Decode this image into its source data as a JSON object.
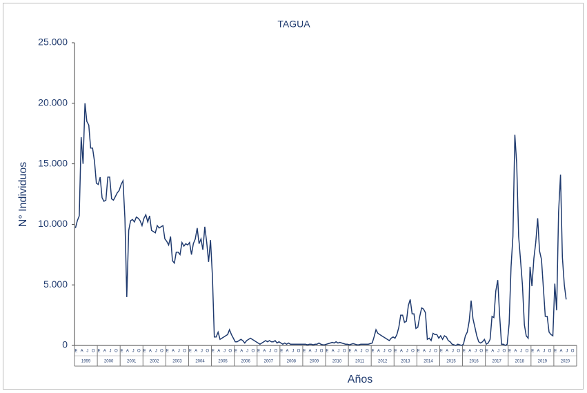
{
  "chart_data": {
    "type": "line",
    "title": "TAGUA",
    "ylabel": "N° Individuos",
    "xlabel": "Años",
    "years": [
      "1999",
      "2000",
      "2001",
      "2002",
      "2003",
      "2004",
      "2005",
      "2006",
      "2007",
      "2008",
      "2009",
      "2010",
      "2011",
      "2012",
      "2013",
      "2014",
      "2015",
      "2016",
      "2017",
      "2018",
      "2019",
      "2020"
    ],
    "month_labels": [
      "E",
      "A",
      "J",
      "O"
    ],
    "color": "#1f3a6e",
    "ylim": [
      0,
      25000
    ],
    "yticks": [
      {
        "value": 0,
        "label": "0"
      },
      {
        "value": 5000,
        "label": "5.000"
      },
      {
        "value": 10000,
        "label": "10.000"
      },
      {
        "value": 15000,
        "label": "15.000"
      },
      {
        "value": 20000,
        "label": "20.000"
      },
      {
        "value": 25000,
        "label": "25.000"
      }
    ],
    "values": [
      9700,
      10300,
      10700,
      17200,
      15000,
      20000,
      18500,
      18200,
      16300,
      16300,
      15200,
      13400,
      13300,
      13900,
      12200,
      11900,
      12000,
      13900,
      13900,
      12100,
      12000,
      12300,
      12600,
      12800,
      13300,
      13600,
      10500,
      4000,
      9500,
      10300,
      10400,
      10200,
      10600,
      10500,
      10300,
      9900,
      10500,
      10800,
      10200,
      10700,
      9500,
      9400,
      9300,
      9900,
      9700,
      9800,
      9900,
      8800,
      8600,
      8300,
      9000,
      7000,
      6800,
      7700,
      7700,
      7500,
      8500,
      8200,
      8400,
      8300,
      8500,
      7500,
      8400,
      8800,
      9700,
      8400,
      8800,
      7900,
      9800,
      8500,
      6900,
      8700,
      5800,
      700,
      700,
      1100,
      500,
      600,
      700,
      800,
      900,
      1300,
      900,
      600,
      300,
      300,
      400,
      500,
      400,
      200,
      400,
      500,
      600,
      500,
      400,
      300,
      200,
      100,
      200,
      300,
      400,
      300,
      400,
      300,
      300,
      400,
      200,
      300,
      200,
      100,
      200,
      100,
      200,
      100,
      100,
      100,
      100,
      100,
      100,
      100,
      100,
      100,
      50,
      100,
      100,
      50,
      100,
      100,
      200,
      100,
      50,
      50,
      100,
      150,
      200,
      250,
      200,
      300,
      200,
      250,
      200,
      150,
      100,
      100,
      50,
      100,
      150,
      100,
      50,
      50,
      100,
      100,
      100,
      100,
      100,
      150,
      200,
      700,
      1300,
      1000,
      900,
      800,
      700,
      600,
      500,
      400,
      600,
      700,
      600,
      900,
      1500,
      2500,
      2500,
      1900,
      2000,
      3300,
      3800,
      2600,
      2600,
      1400,
      1500,
      2400,
      3100,
      3000,
      2700,
      500,
      600,
      400,
      1000,
      900,
      900,
      600,
      800,
      500,
      800,
      700,
      400,
      300,
      100,
      50,
      0,
      100,
      50,
      0,
      100,
      800,
      1100,
      2000,
      3700,
      2200,
      1500,
      800,
      300,
      200,
      300,
      500,
      100,
      200,
      500,
      2400,
      2300,
      4500,
      5400,
      2500,
      100,
      100,
      0,
      100,
      1800,
      6500,
      9000,
      17400,
      15000,
      9000,
      7000,
      5000,
      1700,
      800,
      600,
      6500,
      4900,
      7200,
      8500,
      10500,
      7800,
      7100,
      4800,
      2400,
      2400,
      1100,
      900,
      800,
      5100,
      2900,
      11000,
      14100,
      7300,
      5000,
      3800
    ]
  }
}
